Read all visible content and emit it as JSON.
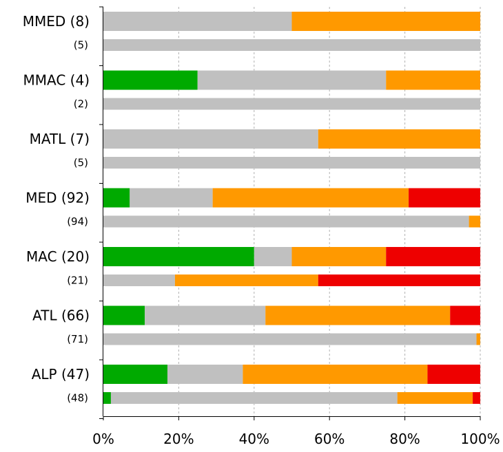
{
  "chart_data": {
    "type": "bar",
    "stacked": true,
    "orientation": "horizontal",
    "title": "",
    "xlabel": "",
    "ylabel": "",
    "xlim": [
      0,
      100
    ],
    "x_ticks": [
      "0%",
      "20%",
      "40%",
      "60%",
      "80%",
      "100%"
    ],
    "grid": "vertical dashed",
    "colors": [
      "#00aa00",
      "#c0c0c0",
      "#ff9900",
      "#ee0000"
    ],
    "groups": [
      {
        "label": "MMED (8)",
        "sub_label": "(5)",
        "primary": [
          0,
          50,
          50,
          0
        ],
        "secondary": [
          0,
          100,
          0,
          0
        ]
      },
      {
        "label": "MMAC (4)",
        "sub_label": "(2)",
        "primary": [
          25,
          50,
          25,
          0
        ],
        "secondary": [
          0,
          100,
          0,
          0
        ]
      },
      {
        "label": "MATL (7)",
        "sub_label": "(5)",
        "primary": [
          0,
          57,
          43,
          0
        ],
        "secondary": [
          0,
          100,
          0,
          0
        ]
      },
      {
        "label": "MED (92)",
        "sub_label": "(94)",
        "primary": [
          7,
          22,
          52,
          19
        ],
        "secondary": [
          0,
          97,
          3,
          0
        ]
      },
      {
        "label": "MAC (20)",
        "sub_label": "(21)",
        "primary": [
          40,
          10,
          25,
          25
        ],
        "secondary": [
          0,
          19,
          38,
          43
        ]
      },
      {
        "label": "ATL (66)",
        "sub_label": "(71)",
        "primary": [
          11,
          32,
          49,
          8
        ],
        "secondary": [
          0,
          99,
          1,
          0
        ]
      },
      {
        "label": "ALP (47)",
        "sub_label": "(48)",
        "primary": [
          17,
          20,
          49,
          14
        ],
        "secondary": [
          2,
          76,
          20,
          2
        ]
      }
    ]
  }
}
